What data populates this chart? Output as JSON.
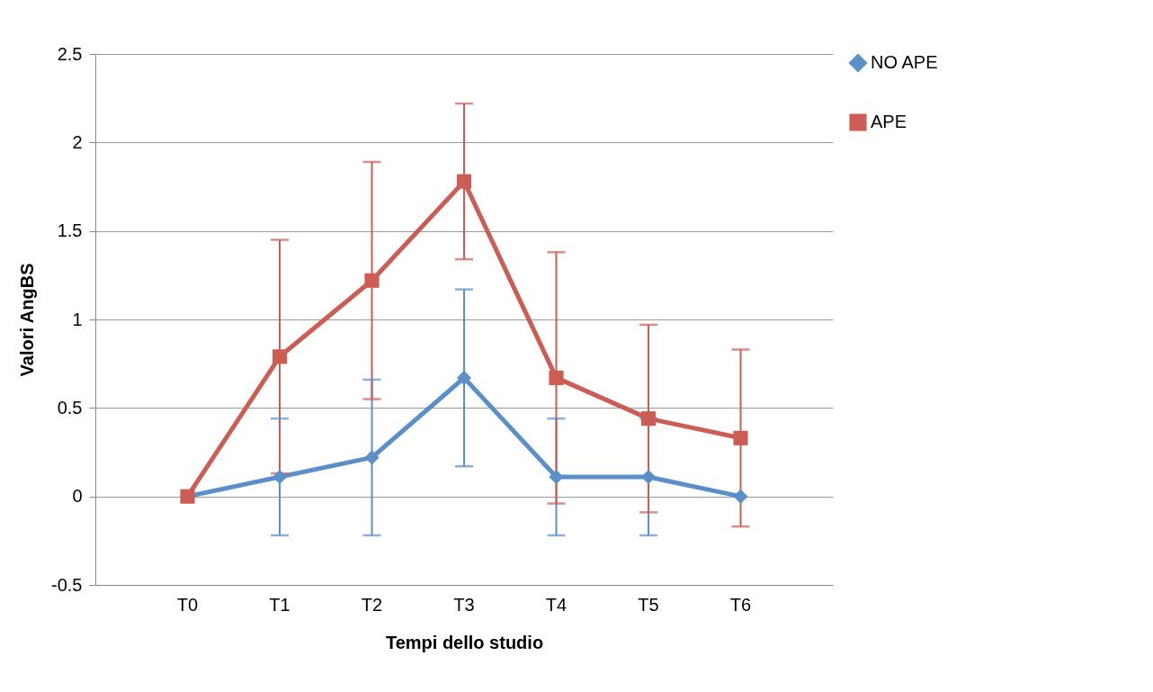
{
  "chart_data": {
    "type": "line",
    "xlabel": "Tempi dello studio",
    "ylabel": "Valori AngBS",
    "categories": [
      "T0",
      "T1",
      "T2",
      "T3",
      "T4",
      "T5",
      "T6"
    ],
    "ylim": [
      -0.5,
      2.5
    ],
    "yticks": [
      -0.5,
      0,
      0.5,
      1,
      1.5,
      2,
      2.5
    ],
    "grid": "y",
    "legend": "right",
    "line_style": "solid",
    "series": [
      {
        "name": "NO APE",
        "color": "#5b8fc9",
        "marker": "diamond",
        "values": [
          0,
          0.11,
          0.22,
          0.67,
          0.11,
          0.11,
          0
        ],
        "errors": [
          null,
          0.33,
          0.44,
          0.5,
          0.33,
          0.33,
          null
        ]
      },
      {
        "name": "APE",
        "color": "#cd5c55",
        "marker": "square",
        "values": [
          0,
          0.79,
          1.22,
          1.78,
          0.67,
          0.44,
          0.33
        ],
        "errors": [
          null,
          0.66,
          0.67,
          0.44,
          0.71,
          0.53,
          0.5
        ]
      }
    ]
  }
}
